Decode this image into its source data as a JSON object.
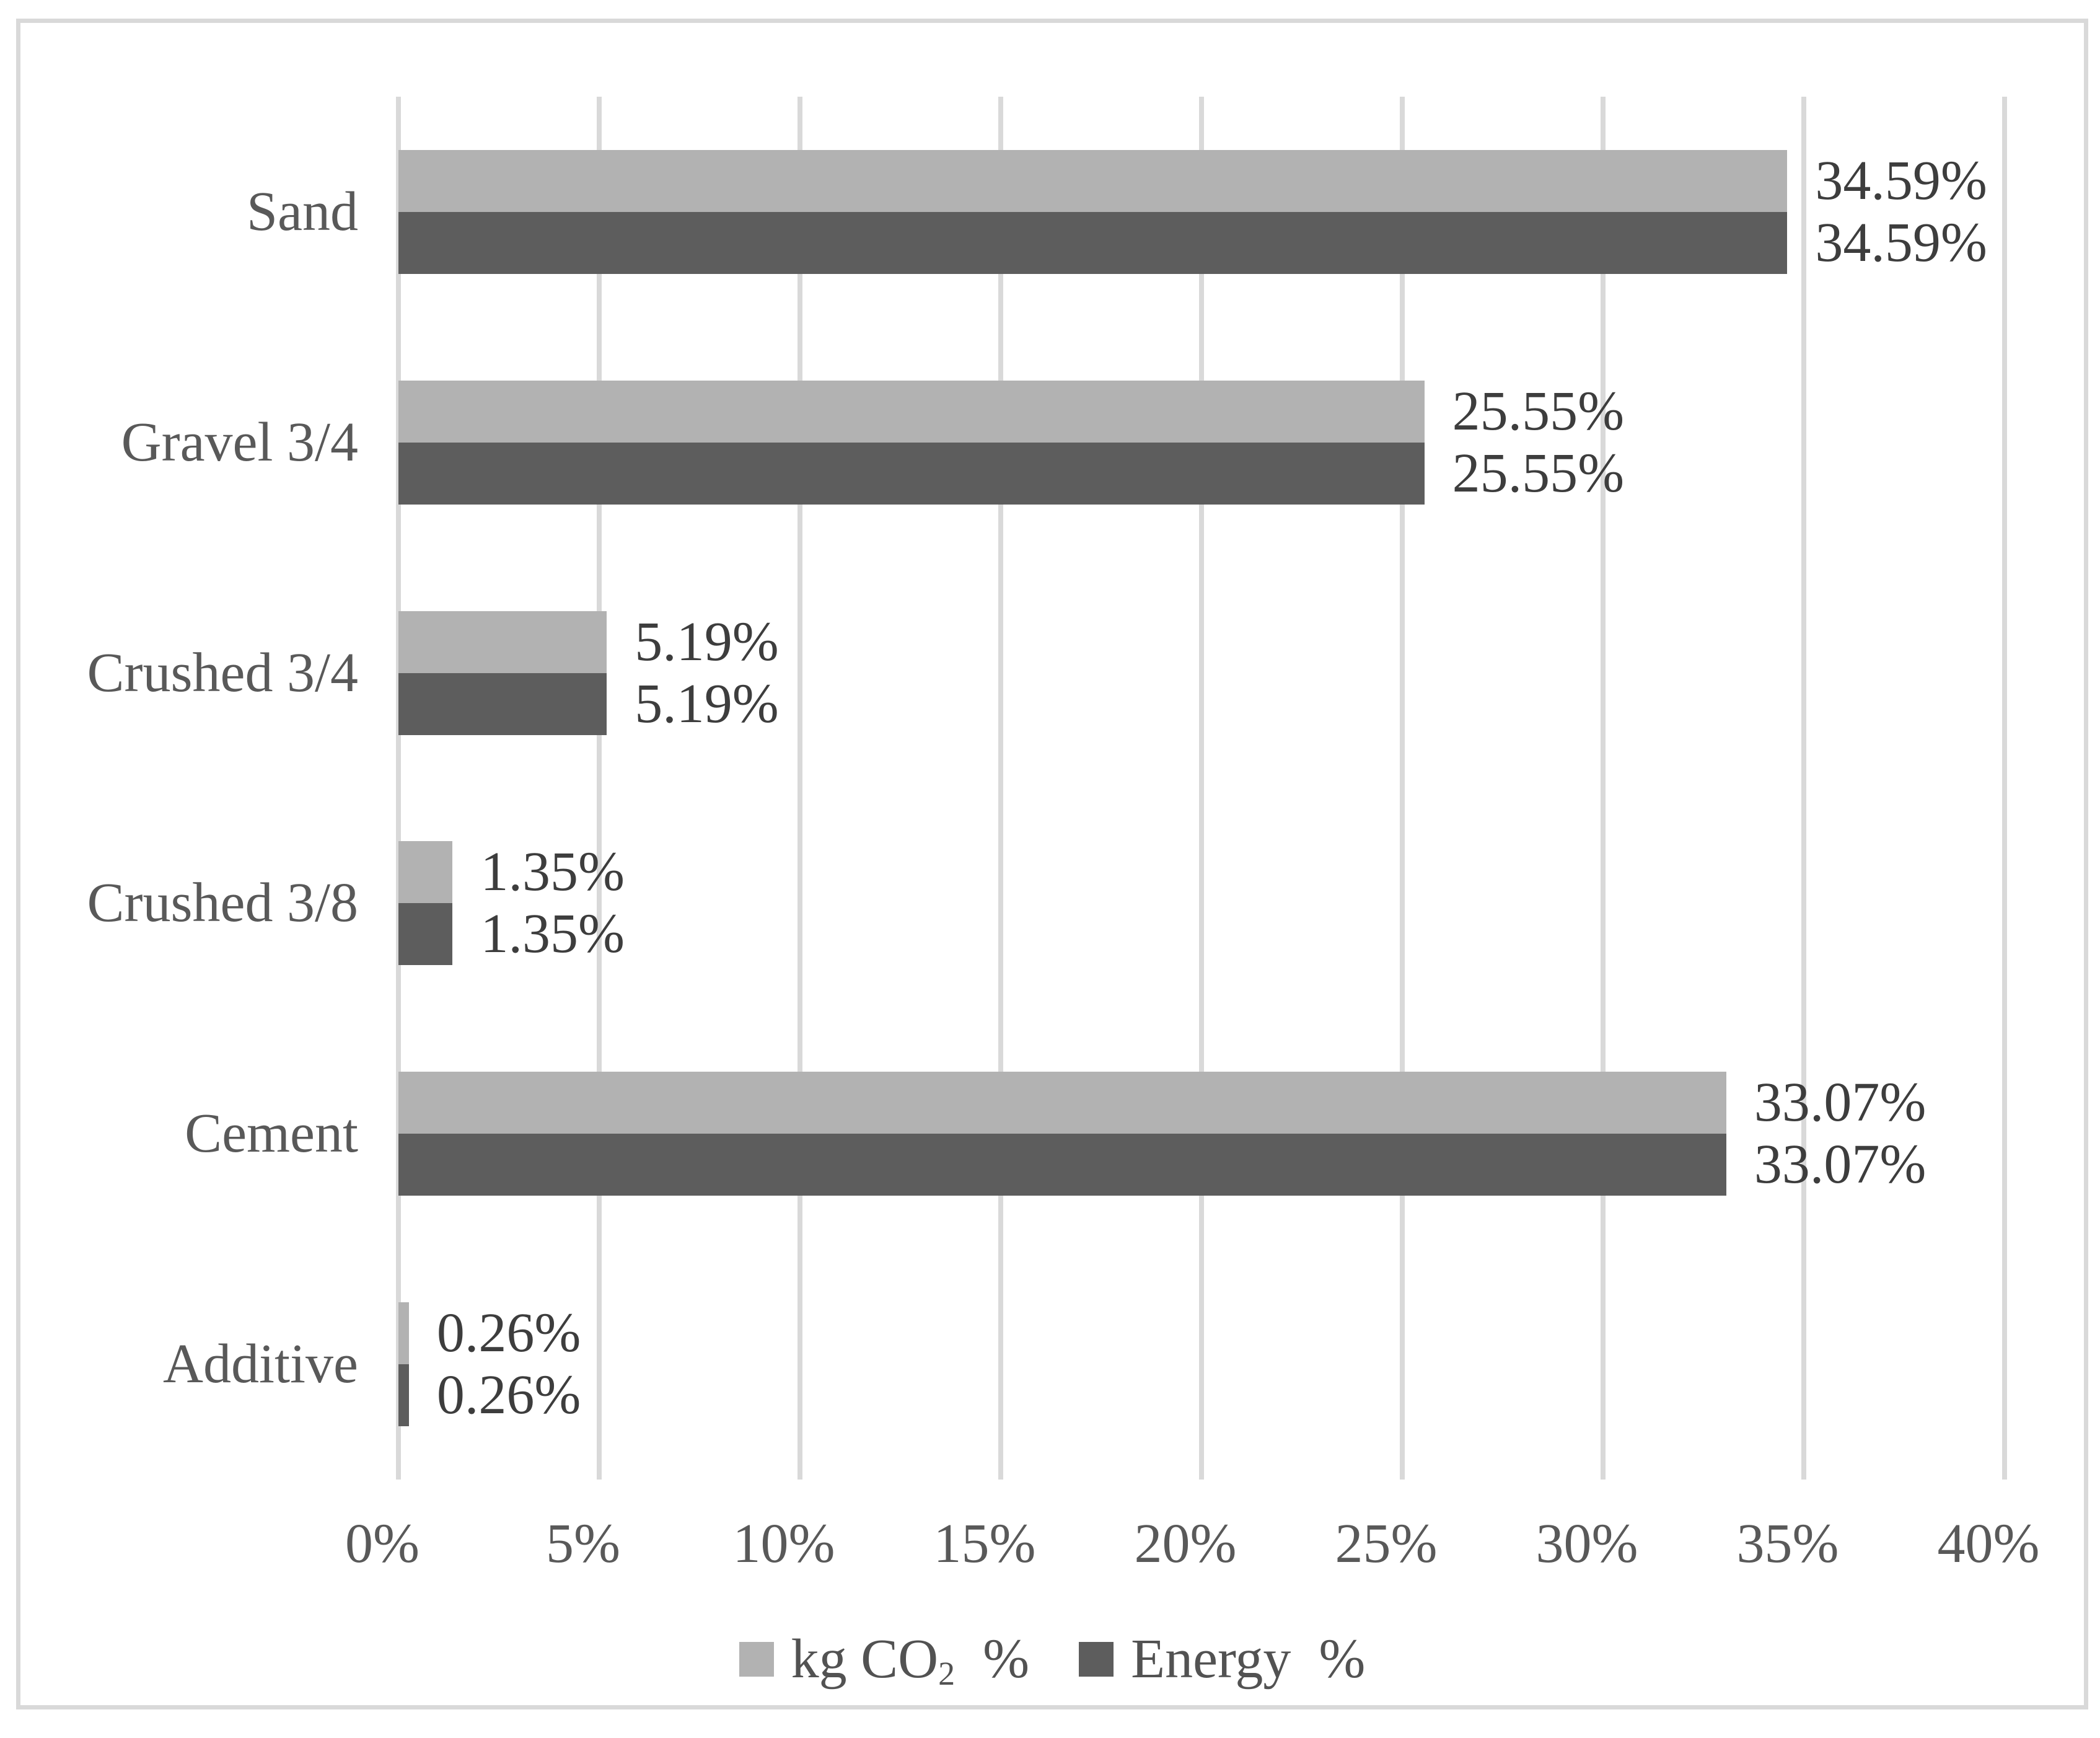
{
  "chart_data": {
    "type": "bar",
    "orientation": "horizontal",
    "title": "",
    "xlabel": "",
    "ylabel": "",
    "categories": [
      "Sand",
      "Gravel 3/4",
      "Crushed 3/4",
      "Crushed 3/8",
      "Cement",
      "Additive"
    ],
    "series": [
      {
        "name": "kg CO2 %",
        "color": "#b2b2b2",
        "values": [
          34.59,
          25.55,
          5.19,
          1.35,
          33.07,
          0.26
        ],
        "labels": [
          "34.59%",
          "25.55%",
          "5.19%",
          "1.35%",
          "33.07%",
          "0.26%"
        ]
      },
      {
        "name": "Energy %",
        "color": "#5d5d5d",
        "values": [
          34.59,
          25.55,
          5.19,
          1.35,
          33.07,
          0.26
        ],
        "labels": [
          "34.59%",
          "25.55%",
          "5.19%",
          "1.35%",
          "33.07%",
          "0.26%"
        ]
      }
    ],
    "xlim": [
      0,
      40
    ],
    "x_tick_labels": [
      "0%",
      "5%",
      "10%",
      "15%",
      "20%",
      "25%",
      "30%",
      "35%",
      "40%"
    ],
    "grid": true,
    "legend_position": "bottom",
    "legend_display": [
      {
        "prefix": "kg CO",
        "sub": "2",
        "suffix": "  %"
      },
      {
        "prefix": "Energy",
        "sub": "",
        "suffix": "  %"
      }
    ],
    "colors": {
      "grid": "#d9d9d9",
      "frame": "#d9d9d9",
      "axis_text": "#595959",
      "value_text": "#3d3d3d",
      "background": "#ffffff"
    }
  }
}
